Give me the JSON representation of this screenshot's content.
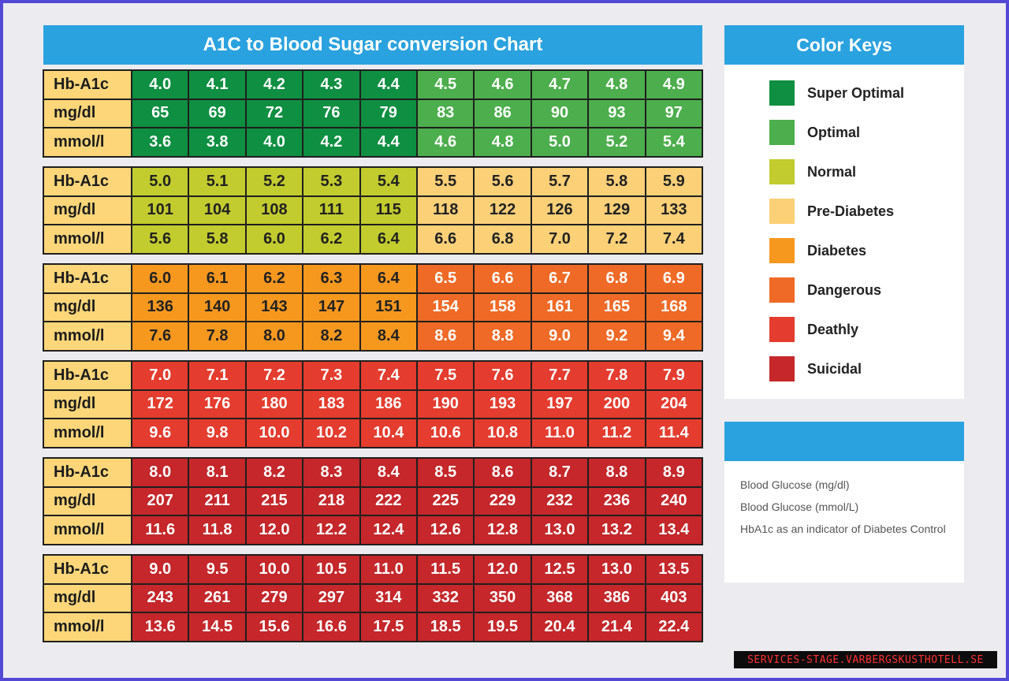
{
  "chart_data": {
    "type": "table",
    "title": "A1C to Blood Sugar conversion Chart",
    "row_labels": [
      "Hb-A1c",
      "mg/dl",
      "mmol/l"
    ],
    "blocks": [
      {
        "hba1c": [
          "4.0",
          "4.1",
          "4.2",
          "4.3",
          "4.4",
          "4.5",
          "4.6",
          "4.7",
          "4.8",
          "4.9"
        ],
        "mgdl": [
          "65",
          "69",
          "72",
          "76",
          "79",
          "83",
          "86",
          "90",
          "93",
          "97"
        ],
        "mmol": [
          "3.6",
          "3.8",
          "4.0",
          "4.2",
          "4.4",
          "4.6",
          "4.8",
          "5.0",
          "5.2",
          "5.4"
        ],
        "categories": [
          "Super Optimal",
          "Super Optimal",
          "Super Optimal",
          "Super Optimal",
          "Super Optimal",
          "Optimal",
          "Optimal",
          "Optimal",
          "Optimal",
          "Optimal"
        ]
      },
      {
        "hba1c": [
          "5.0",
          "5.1",
          "5.2",
          "5.3",
          "5.4",
          "5.5",
          "5.6",
          "5.7",
          "5.8",
          "5.9"
        ],
        "mgdl": [
          "101",
          "104",
          "108",
          "111",
          "115",
          "118",
          "122",
          "126",
          "129",
          "133"
        ],
        "mmol": [
          "5.6",
          "5.8",
          "6.0",
          "6.2",
          "6.4",
          "6.6",
          "6.8",
          "7.0",
          "7.2",
          "7.4"
        ],
        "categories": [
          "Normal",
          "Normal",
          "Normal",
          "Normal",
          "Normal",
          "Pre-Diabetes",
          "Pre-Diabetes",
          "Pre-Diabetes",
          "Pre-Diabetes",
          "Pre-Diabetes"
        ]
      },
      {
        "hba1c": [
          "6.0",
          "6.1",
          "6.2",
          "6.3",
          "6.4",
          "6.5",
          "6.6",
          "6.7",
          "6.8",
          "6.9"
        ],
        "mgdl": [
          "136",
          "140",
          "143",
          "147",
          "151",
          "154",
          "158",
          "161",
          "165",
          "168"
        ],
        "mmol": [
          "7.6",
          "7.8",
          "8.0",
          "8.2",
          "8.4",
          "8.6",
          "8.8",
          "9.0",
          "9.2",
          "9.4"
        ],
        "categories": [
          "Diabetes",
          "Diabetes",
          "Diabetes",
          "Diabetes",
          "Diabetes",
          "Dangerous",
          "Dangerous",
          "Dangerous",
          "Dangerous",
          "Dangerous"
        ]
      },
      {
        "hba1c": [
          "7.0",
          "7.1",
          "7.2",
          "7.3",
          "7.4",
          "7.5",
          "7.6",
          "7.7",
          "7.8",
          "7.9"
        ],
        "mgdl": [
          "172",
          "176",
          "180",
          "183",
          "186",
          "190",
          "193",
          "197",
          "200",
          "204"
        ],
        "mmol": [
          "9.6",
          "9.8",
          "10.0",
          "10.2",
          "10.4",
          "10.6",
          "10.8",
          "11.0",
          "11.2",
          "11.4"
        ],
        "categories": [
          "Deathly",
          "Deathly",
          "Deathly",
          "Deathly",
          "Deathly",
          "Deathly",
          "Deathly",
          "Deathly",
          "Deathly",
          "Deathly"
        ]
      },
      {
        "hba1c": [
          "8.0",
          "8.1",
          "8.2",
          "8.3",
          "8.4",
          "8.5",
          "8.6",
          "8.7",
          "8.8",
          "8.9"
        ],
        "mgdl": [
          "207",
          "211",
          "215",
          "218",
          "222",
          "225",
          "229",
          "232",
          "236",
          "240"
        ],
        "mmol": [
          "11.6",
          "11.8",
          "12.0",
          "12.2",
          "12.4",
          "12.6",
          "12.8",
          "13.0",
          "13.2",
          "13.4"
        ],
        "categories": [
          "Suicidal",
          "Suicidal",
          "Suicidal",
          "Suicidal",
          "Suicidal",
          "Suicidal",
          "Suicidal",
          "Suicidal",
          "Suicidal",
          "Suicidal"
        ]
      },
      {
        "hba1c": [
          "9.0",
          "9.5",
          "10.0",
          "10.5",
          "11.0",
          "11.5",
          "12.0",
          "12.5",
          "13.0",
          "13.5"
        ],
        "mgdl": [
          "243",
          "261",
          "279",
          "297",
          "314",
          "332",
          "350",
          "368",
          "386",
          "403"
        ],
        "mmol": [
          "13.6",
          "14.5",
          "15.6",
          "16.6",
          "17.5",
          "18.5",
          "19.5",
          "20.4",
          "21.4",
          "22.4"
        ],
        "categories": [
          "Suicidal",
          "Suicidal",
          "Suicidal",
          "Suicidal",
          "Suicidal",
          "Suicidal",
          "Suicidal",
          "Suicidal",
          "Suicidal",
          "Suicidal"
        ]
      }
    ]
  },
  "color_keys": {
    "title": "Color Keys",
    "items": [
      {
        "label": "Super Optimal",
        "color": "#0e8f41"
      },
      {
        "label": "Optimal",
        "color": "#4cae4c"
      },
      {
        "label": "Normal",
        "color": "#c2cc2e"
      },
      {
        "label": "Pre-Diabetes",
        "color": "#fcd077"
      },
      {
        "label": "Diabetes",
        "color": "#f7981e"
      },
      {
        "label": "Dangerous",
        "color": "#ef6a26"
      },
      {
        "label": "Deathly",
        "color": "#e43c2e"
      },
      {
        "label": "Suicidal",
        "color": "#c5272a"
      }
    ]
  },
  "legend": {
    "lines": [
      "Blood Glucose (mg/dl)",
      "Blood Glucose (mmol/L)",
      "HbA1c as an indicator of Diabetes Control"
    ]
  },
  "watermark": "SERVICES-STAGE.VARBERGSKUSTHOTELL.SE"
}
